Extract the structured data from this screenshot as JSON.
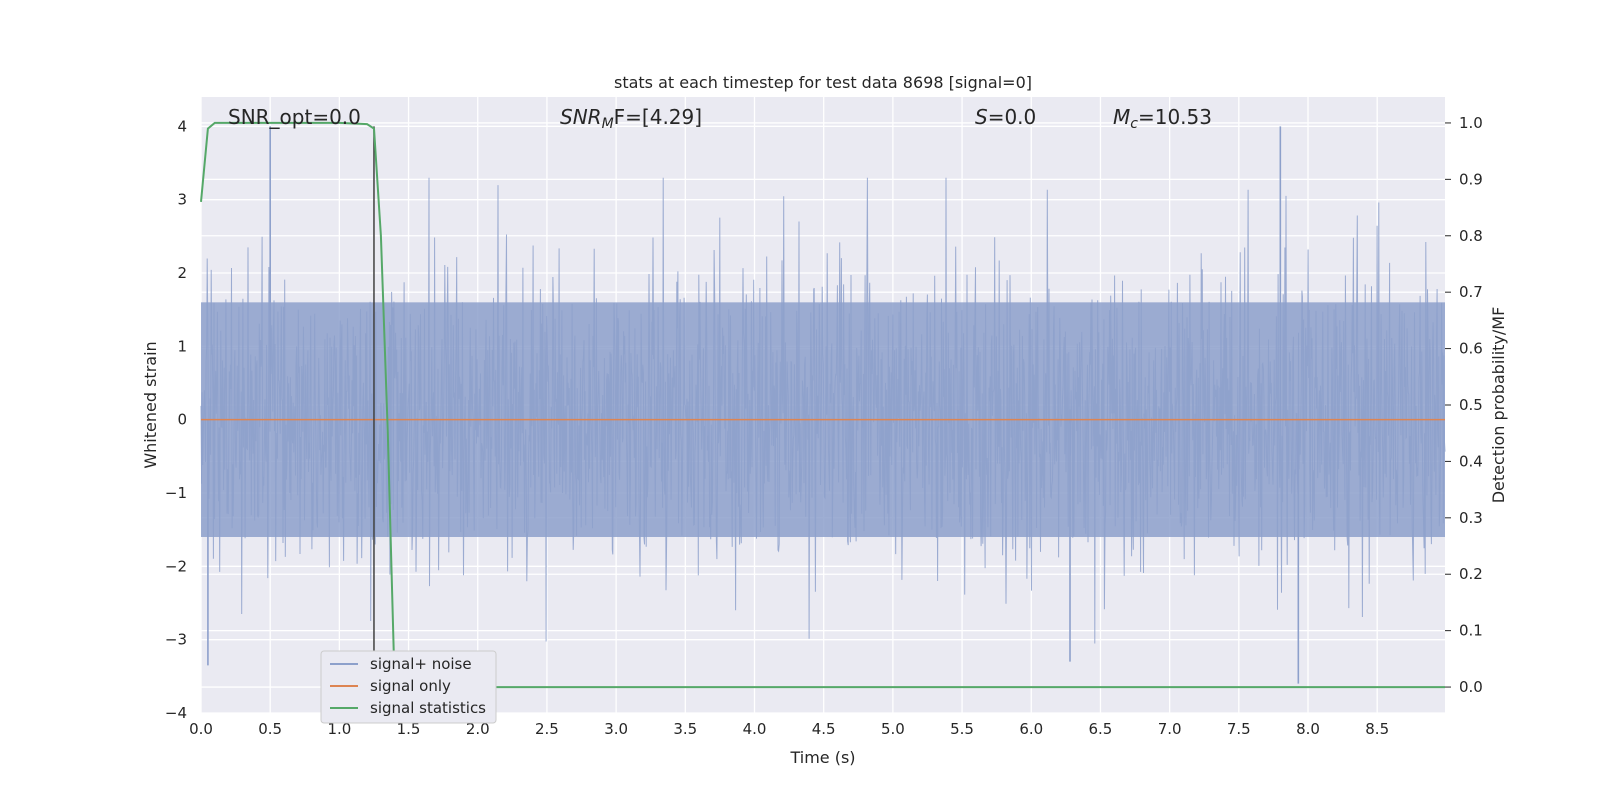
{
  "chart_data": {
    "type": "line",
    "title": "stats at each timestep for test data 8698 [signal=0]",
    "xlabel": "Time (s)",
    "ylabel_left": "Whitened strain",
    "ylabel_right": "Detection probability/MF",
    "xlim": [
      0.0,
      8.99
    ],
    "ylim_left": [
      -4.0,
      4.4
    ],
    "ylim_right": [
      -0.046,
      1.046
    ],
    "x_ticks": [
      "0.0",
      "0.5",
      "1.0",
      "1.5",
      "2.0",
      "2.5",
      "3.0",
      "3.5",
      "4.0",
      "4.5",
      "5.0",
      "5.5",
      "6.0",
      "6.5",
      "7.0",
      "7.5",
      "8.0",
      "8.5"
    ],
    "y_left_ticks": [
      "4",
      "3",
      "2",
      "1",
      "0",
      "−1",
      "−2",
      "−3",
      "−4"
    ],
    "y_right_ticks": [
      "1.0",
      "0.9",
      "0.8",
      "0.7",
      "0.6",
      "0.5",
      "0.4",
      "0.3",
      "0.2",
      "0.1",
      "0.0"
    ],
    "grid": true,
    "legend_placement": "lower-left",
    "annotations": {
      "snr_opt": "SNR_opt=0.0",
      "snr_mf_sym": "SNR",
      "snr_mf_sub": "M",
      "snr_mf_rest": "F=[4.29]",
      "s_sym": "S",
      "s_rest": "=0.0",
      "mc_sym": "M",
      "mc_sub": "c",
      "mc_rest": "=10.53"
    },
    "marker_line_x": 1.25,
    "series": [
      {
        "name": "signal+ noise",
        "color": "#8da0cb",
        "description_values": "noise envelope, amplitude mostly within [-2.5, 2.5] with spikes up to 4.0",
        "spikes": [
          {
            "x": 0.5,
            "y": 4.0
          },
          {
            "x": 7.8,
            "y": 4.0
          },
          {
            "x": 7.93,
            "y": -3.6
          },
          {
            "x": 0.05,
            "y": -3.35
          },
          {
            "x": 6.28,
            "y": -3.3
          }
        ]
      },
      {
        "name": "signal only",
        "color": "#dd8452",
        "values_note": "flat at 0"
      },
      {
        "name": "signal statistics",
        "color": "#55a868",
        "points": [
          [
            0.0,
            0.86
          ],
          [
            0.05,
            0.99
          ],
          [
            0.1,
            1.0
          ],
          [
            1.0,
            1.0
          ],
          [
            1.2,
            0.998
          ],
          [
            1.25,
            0.99
          ],
          [
            1.3,
            0.8
          ],
          [
            1.35,
            0.45
          ],
          [
            1.4,
            0.0
          ],
          [
            8.99,
            0.0
          ]
        ]
      }
    ],
    "legend": [
      "signal+ noise",
      "signal only",
      "signal statistics"
    ]
  }
}
